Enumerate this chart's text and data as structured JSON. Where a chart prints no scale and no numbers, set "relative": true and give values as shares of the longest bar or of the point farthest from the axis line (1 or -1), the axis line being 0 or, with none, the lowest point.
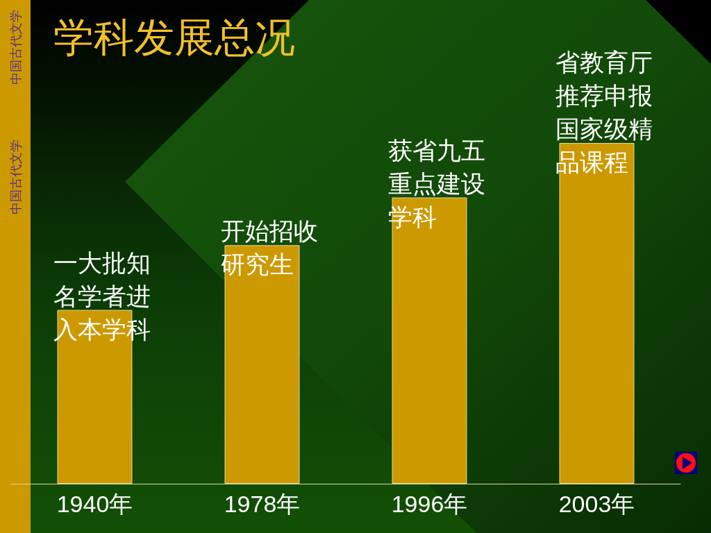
{
  "chart_data": {
    "type": "bar",
    "title": "学科发展总况",
    "categories": [
      "1940年",
      "1978年",
      "1996年",
      "2003年"
    ],
    "values": [
      0.51,
      0.7,
      0.84,
      1
    ],
    "color": "#cc9900",
    "relative": true,
    "annotations": [
      {
        "text": "一大批知名学者进入本学科",
        "x": "1940年",
        "y": 0.51
      },
      {
        "text": "开始招收研究生",
        "x": "1978年",
        "y": 0.7
      },
      {
        "text": "获省九五重点建设学科",
        "x": "1996年",
        "y": 0.84
      },
      {
        "text": "省教育厅推荐申报国家级精品课程",
        "x": "2003年",
        "y": 1
      },
      "中国古代文学",
      "中国古代文学"
    ]
  }
}
